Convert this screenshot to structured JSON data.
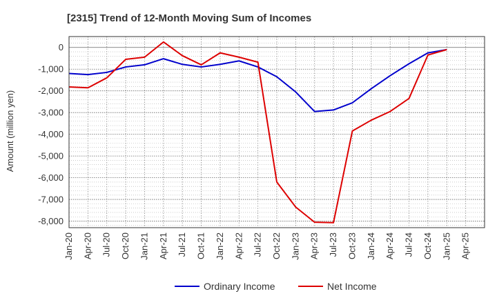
{
  "chart_data": {
    "type": "line",
    "title": "[2315]  Trend of 12-Month Moving Sum of Incomes",
    "xlabel": "",
    "ylabel": "Amount (million yen)",
    "ylim": [
      -8300,
      500
    ],
    "yticks": [
      0,
      -1000,
      -2000,
      -3000,
      -4000,
      -5000,
      -6000,
      -7000,
      -8000
    ],
    "ytick_labels": [
      "0",
      "-1,000",
      "-2,000",
      "-3,000",
      "-4,000",
      "-5,000",
      "-6,000",
      "-7,000",
      "-8,000"
    ],
    "xtick_labels": [
      "Jan-20",
      "Apr-20",
      "Jul-20",
      "Oct-20",
      "Jan-21",
      "Apr-21",
      "Jul-21",
      "Oct-21",
      "Jan-22",
      "Apr-22",
      "Jul-22",
      "Oct-22",
      "Jan-23",
      "Apr-23",
      "Jul-23",
      "Oct-23",
      "Jan-24",
      "Apr-24",
      "Jul-24",
      "Oct-24",
      "Jan-25",
      "Apr-25"
    ],
    "grid": true,
    "legend_position": "bottom",
    "series": [
      {
        "name": "Ordinary Income",
        "color": "#0000cc",
        "values": [
          -1200,
          -1250,
          -1150,
          -900,
          -800,
          -520,
          -780,
          -900,
          -780,
          -620,
          -900,
          -1350,
          -2050,
          -2950,
          -2880,
          -2550,
          -1900,
          -1300,
          -750,
          -250,
          -100
        ]
      },
      {
        "name": "Net Income",
        "color": "#dd0000",
        "values": [
          -1820,
          -1860,
          -1400,
          -550,
          -450,
          250,
          -380,
          -800,
          -250,
          -450,
          -680,
          -6200,
          -7350,
          -8050,
          -8070,
          -3850,
          -3350,
          -2950,
          -2350,
          -350,
          -100
        ]
      }
    ]
  }
}
